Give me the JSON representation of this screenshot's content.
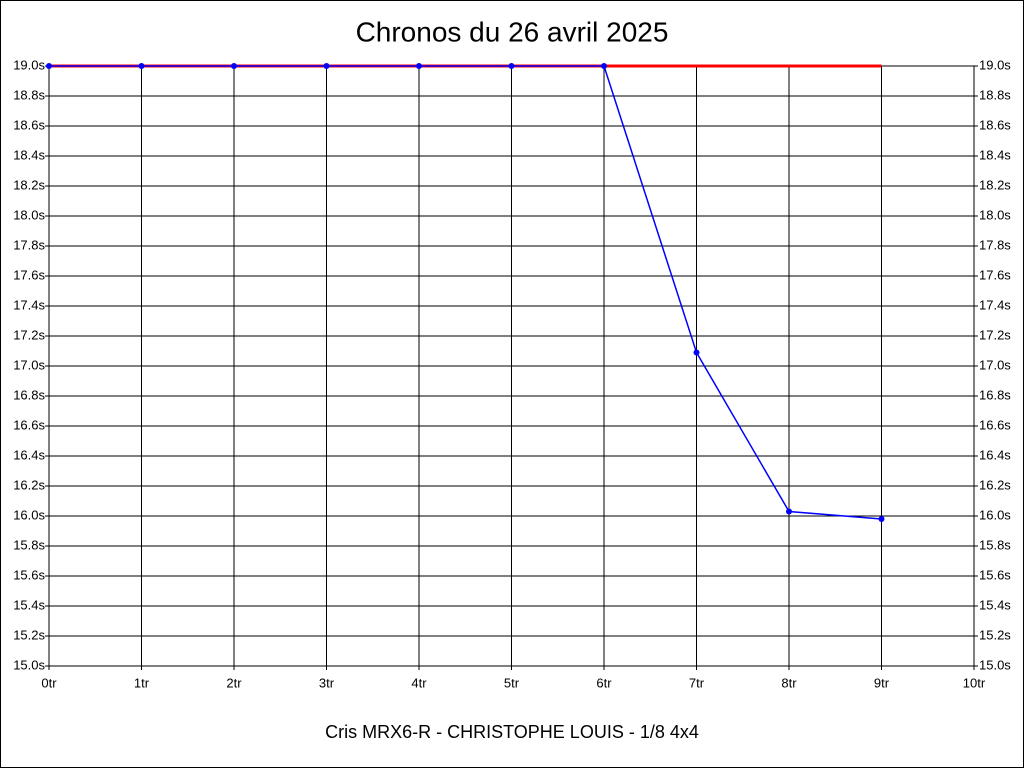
{
  "chart_data": {
    "type": "line",
    "title": "Chronos du 26 avril 2025",
    "xlabel": "Cris MRX6-R - CHRISTOPHE LOUIS - 1/8 4x4",
    "x": [
      0,
      1,
      2,
      3,
      4,
      5,
      6,
      7,
      8,
      9
    ],
    "series": [
      {
        "color": "#ff0000",
        "marker": false,
        "values": [
          19.0,
          19.0,
          19.0,
          19.0,
          19.0,
          19.0,
          19.0,
          19.0,
          19.0,
          19.0
        ]
      },
      {
        "color": "#0000ff",
        "marker": true,
        "values": [
          19.0,
          19.0,
          19.0,
          19.0,
          19.0,
          19.0,
          19.0,
          17.09,
          16.03,
          15.98
        ]
      }
    ],
    "xlim": [
      0,
      10
    ],
    "xticks": [
      {
        "value": 0,
        "label": "0tr"
      },
      {
        "value": 1,
        "label": "1tr"
      },
      {
        "value": 2,
        "label": "2tr"
      },
      {
        "value": 3,
        "label": "3tr"
      },
      {
        "value": 4,
        "label": "4tr"
      },
      {
        "value": 5,
        "label": "5tr"
      },
      {
        "value": 6,
        "label": "6tr"
      },
      {
        "value": 7,
        "label": "7tr"
      },
      {
        "value": 8,
        "label": "8tr"
      },
      {
        "value": 9,
        "label": "9tr"
      },
      {
        "value": 10,
        "label": "10tr"
      }
    ],
    "ylim": [
      15.0,
      19.0
    ],
    "yticks": [
      {
        "value": 15.0,
        "label": "15.0s"
      },
      {
        "value": 15.2,
        "label": "15.2s"
      },
      {
        "value": 15.4,
        "label": "15.4s"
      },
      {
        "value": 15.6,
        "label": "15.6s"
      },
      {
        "value": 15.8,
        "label": "15.8s"
      },
      {
        "value": 16.0,
        "label": "16.0s"
      },
      {
        "value": 16.2,
        "label": "16.2s"
      },
      {
        "value": 16.4,
        "label": "16.4s"
      },
      {
        "value": 16.6,
        "label": "16.6s"
      },
      {
        "value": 16.8,
        "label": "16.8s"
      },
      {
        "value": 17.0,
        "label": "17.0s"
      },
      {
        "value": 17.2,
        "label": "17.2s"
      },
      {
        "value": 17.4,
        "label": "17.4s"
      },
      {
        "value": 17.6,
        "label": "17.6s"
      },
      {
        "value": 17.8,
        "label": "17.8s"
      },
      {
        "value": 18.0,
        "label": "18.0s"
      },
      {
        "value": 18.2,
        "label": "18.2s"
      },
      {
        "value": 18.4,
        "label": "18.4s"
      },
      {
        "value": 18.6,
        "label": "18.6s"
      },
      {
        "value": 18.8,
        "label": "18.8s"
      },
      {
        "value": 19.0,
        "label": "19.0s"
      }
    ],
    "y_labels_both_sides": true,
    "grid": true
  }
}
